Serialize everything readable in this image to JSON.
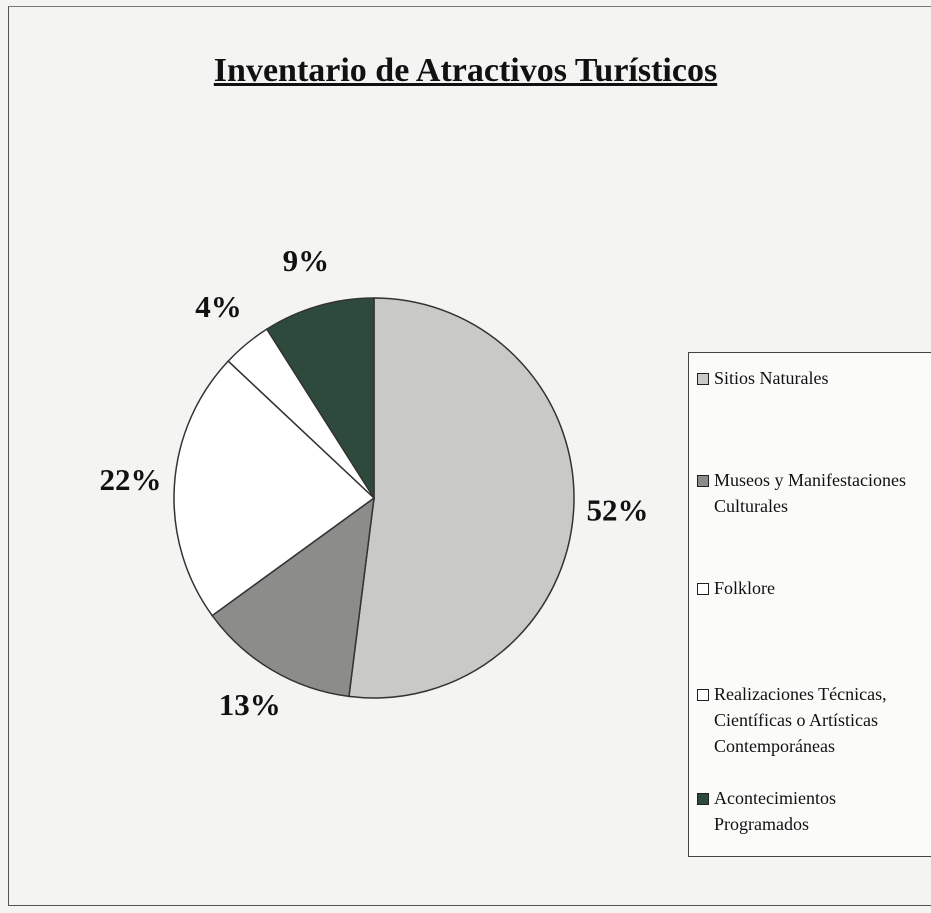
{
  "chart_data": {
    "type": "pie",
    "title": "Inventario de Atractivos Turísticos",
    "categories": [
      "Sitios Naturales",
      "Museos y Manifestaciones Culturales",
      "Folklore",
      "Realizaciones Técnicas, Científicas o Artísticas Contemporáneas",
      "Acontecimientos Programados"
    ],
    "values": [
      52,
      13,
      22,
      4,
      9
    ],
    "value_labels": [
      "52%",
      "13%",
      "22%",
      "4%",
      "9%"
    ],
    "colors": [
      "#c9c9c7",
      "#8c8c8a",
      "#ffffff",
      "#ffffff",
      "#2e4a3c"
    ],
    "legend": "right"
  }
}
